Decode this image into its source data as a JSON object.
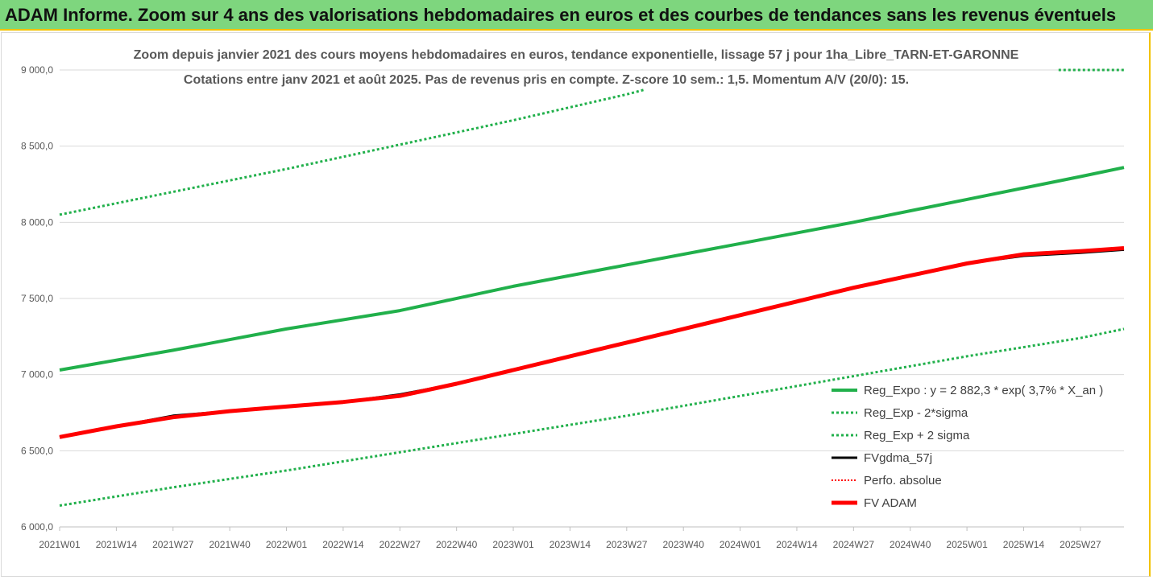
{
  "banner": {
    "title": "ADAM Informe. Zoom sur 4 ans des valorisations hebdomadaires en euros et des courbes de tendances sans les revenus éventuels"
  },
  "chart_data": {
    "type": "line",
    "title_line1": "Zoom depuis janvier 2021 des cours moyens hebdomadaires en euros, tendance exponentielle, lissage 57 j pour 1ha_Libre_TARN-ET-GARONNE",
    "title_line2": "Cotations entre janv 2021 et août 2025. Pas de revenus pris en compte. Z-score 10 sem.: 1,5. Momentum A/V (20/0): 15.",
    "ylim": [
      6000,
      9000
    ],
    "y_ticks": [
      6000,
      6500,
      7000,
      7500,
      8000,
      8500,
      9000
    ],
    "y_tick_labels": [
      "6 000,0",
      "6 500,0",
      "7 000,0",
      "7 500,0",
      "8 000,0",
      "8 500,0",
      "9 000,0"
    ],
    "x_tick_labels": [
      "2021W01",
      "2021W14",
      "2021W27",
      "2021W40",
      "2022W01",
      "2022W14",
      "2022W27",
      "2022W40",
      "2023W01",
      "2023W14",
      "2023W27",
      "2023W40",
      "2024W01",
      "2024W14",
      "2024W27",
      "2024W40",
      "2025W01",
      "2025W14",
      "2025W27"
    ],
    "x_tick_positions": [
      0,
      13,
      26,
      39,
      52,
      65,
      78,
      91,
      104,
      117,
      130,
      143,
      156,
      169,
      182,
      195,
      208,
      221,
      234
    ],
    "x_range": [
      0,
      244
    ],
    "grid": "horizontal",
    "legend_position": "right",
    "series": [
      {
        "name": "Reg_Expo : y = 2 882,3 * exp( 3,7% *  X_an )",
        "color": "#21b04b",
        "style": "solid",
        "width": 4,
        "points": [
          [
            0,
            7030
          ],
          [
            26,
            7160
          ],
          [
            52,
            7300
          ],
          [
            78,
            7420
          ],
          [
            104,
            7580
          ],
          [
            130,
            7720
          ],
          [
            156,
            7860
          ],
          [
            182,
            8000
          ],
          [
            208,
            8150
          ],
          [
            234,
            8300
          ],
          [
            244,
            8360
          ]
        ]
      },
      {
        "name": "Reg_Exp - 2*sigma",
        "color": "#21b04b",
        "style": "dotted",
        "width": 3,
        "points": [
          [
            0,
            6140
          ],
          [
            26,
            6260
          ],
          [
            52,
            6370
          ],
          [
            78,
            6490
          ],
          [
            104,
            6610
          ],
          [
            130,
            6730
          ],
          [
            156,
            6860
          ],
          [
            182,
            6990
          ],
          [
            208,
            7120
          ],
          [
            234,
            7240
          ],
          [
            244,
            7300
          ]
        ]
      },
      {
        "name": "Reg_Exp + 2 sigma",
        "color": "#21b04b",
        "style": "dotted",
        "width": 3,
        "points": [
          [
            0,
            8050
          ],
          [
            26,
            8200
          ],
          [
            52,
            8350
          ],
          [
            78,
            8510
          ],
          [
            104,
            8670
          ],
          [
            130,
            8840
          ],
          [
            134,
            8870
          ]
        ],
        "points_2": [
          [
            229,
            9000
          ],
          [
            244,
            9000
          ]
        ]
      },
      {
        "name": "FVgdma_57j",
        "color": "#000000",
        "style": "solid",
        "width": 3,
        "points": [
          [
            0,
            6590
          ],
          [
            13,
            6660
          ],
          [
            26,
            6730
          ],
          [
            39,
            6760
          ],
          [
            52,
            6790
          ],
          [
            65,
            6820
          ],
          [
            78,
            6870
          ],
          [
            91,
            6940
          ],
          [
            104,
            7030
          ],
          [
            117,
            7120
          ],
          [
            130,
            7210
          ],
          [
            143,
            7300
          ],
          [
            156,
            7390
          ],
          [
            169,
            7480
          ],
          [
            182,
            7570
          ],
          [
            195,
            7650
          ],
          [
            208,
            7730
          ],
          [
            221,
            7780
          ],
          [
            234,
            7800
          ],
          [
            244,
            7820
          ]
        ]
      },
      {
        "name": "Perfo. absolue",
        "color": "#ff0000",
        "style": "dotted",
        "width": 2,
        "points": [
          [
            0,
            6590
          ],
          [
            13,
            6660
          ],
          [
            26,
            6720
          ],
          [
            39,
            6760
          ],
          [
            52,
            6790
          ],
          [
            65,
            6820
          ],
          [
            78,
            6860
          ],
          [
            91,
            6940
          ],
          [
            104,
            7030
          ],
          [
            117,
            7120
          ],
          [
            130,
            7210
          ],
          [
            143,
            7300
          ],
          [
            156,
            7390
          ],
          [
            169,
            7480
          ],
          [
            182,
            7570
          ],
          [
            195,
            7650
          ],
          [
            208,
            7730
          ],
          [
            221,
            7790
          ],
          [
            234,
            7810
          ],
          [
            244,
            7830
          ]
        ]
      },
      {
        "name": "FV ADAM",
        "color": "#ff0000",
        "style": "solid",
        "width": 5,
        "points": [
          [
            0,
            6590
          ],
          [
            13,
            6660
          ],
          [
            26,
            6720
          ],
          [
            39,
            6760
          ],
          [
            52,
            6790
          ],
          [
            65,
            6820
          ],
          [
            78,
            6860
          ],
          [
            91,
            6940
          ],
          [
            104,
            7030
          ],
          [
            117,
            7120
          ],
          [
            130,
            7210
          ],
          [
            143,
            7300
          ],
          [
            156,
            7390
          ],
          [
            169,
            7480
          ],
          [
            182,
            7570
          ],
          [
            195,
            7650
          ],
          [
            208,
            7730
          ],
          [
            221,
            7790
          ],
          [
            234,
            7810
          ],
          [
            244,
            7830
          ]
        ]
      }
    ]
  }
}
